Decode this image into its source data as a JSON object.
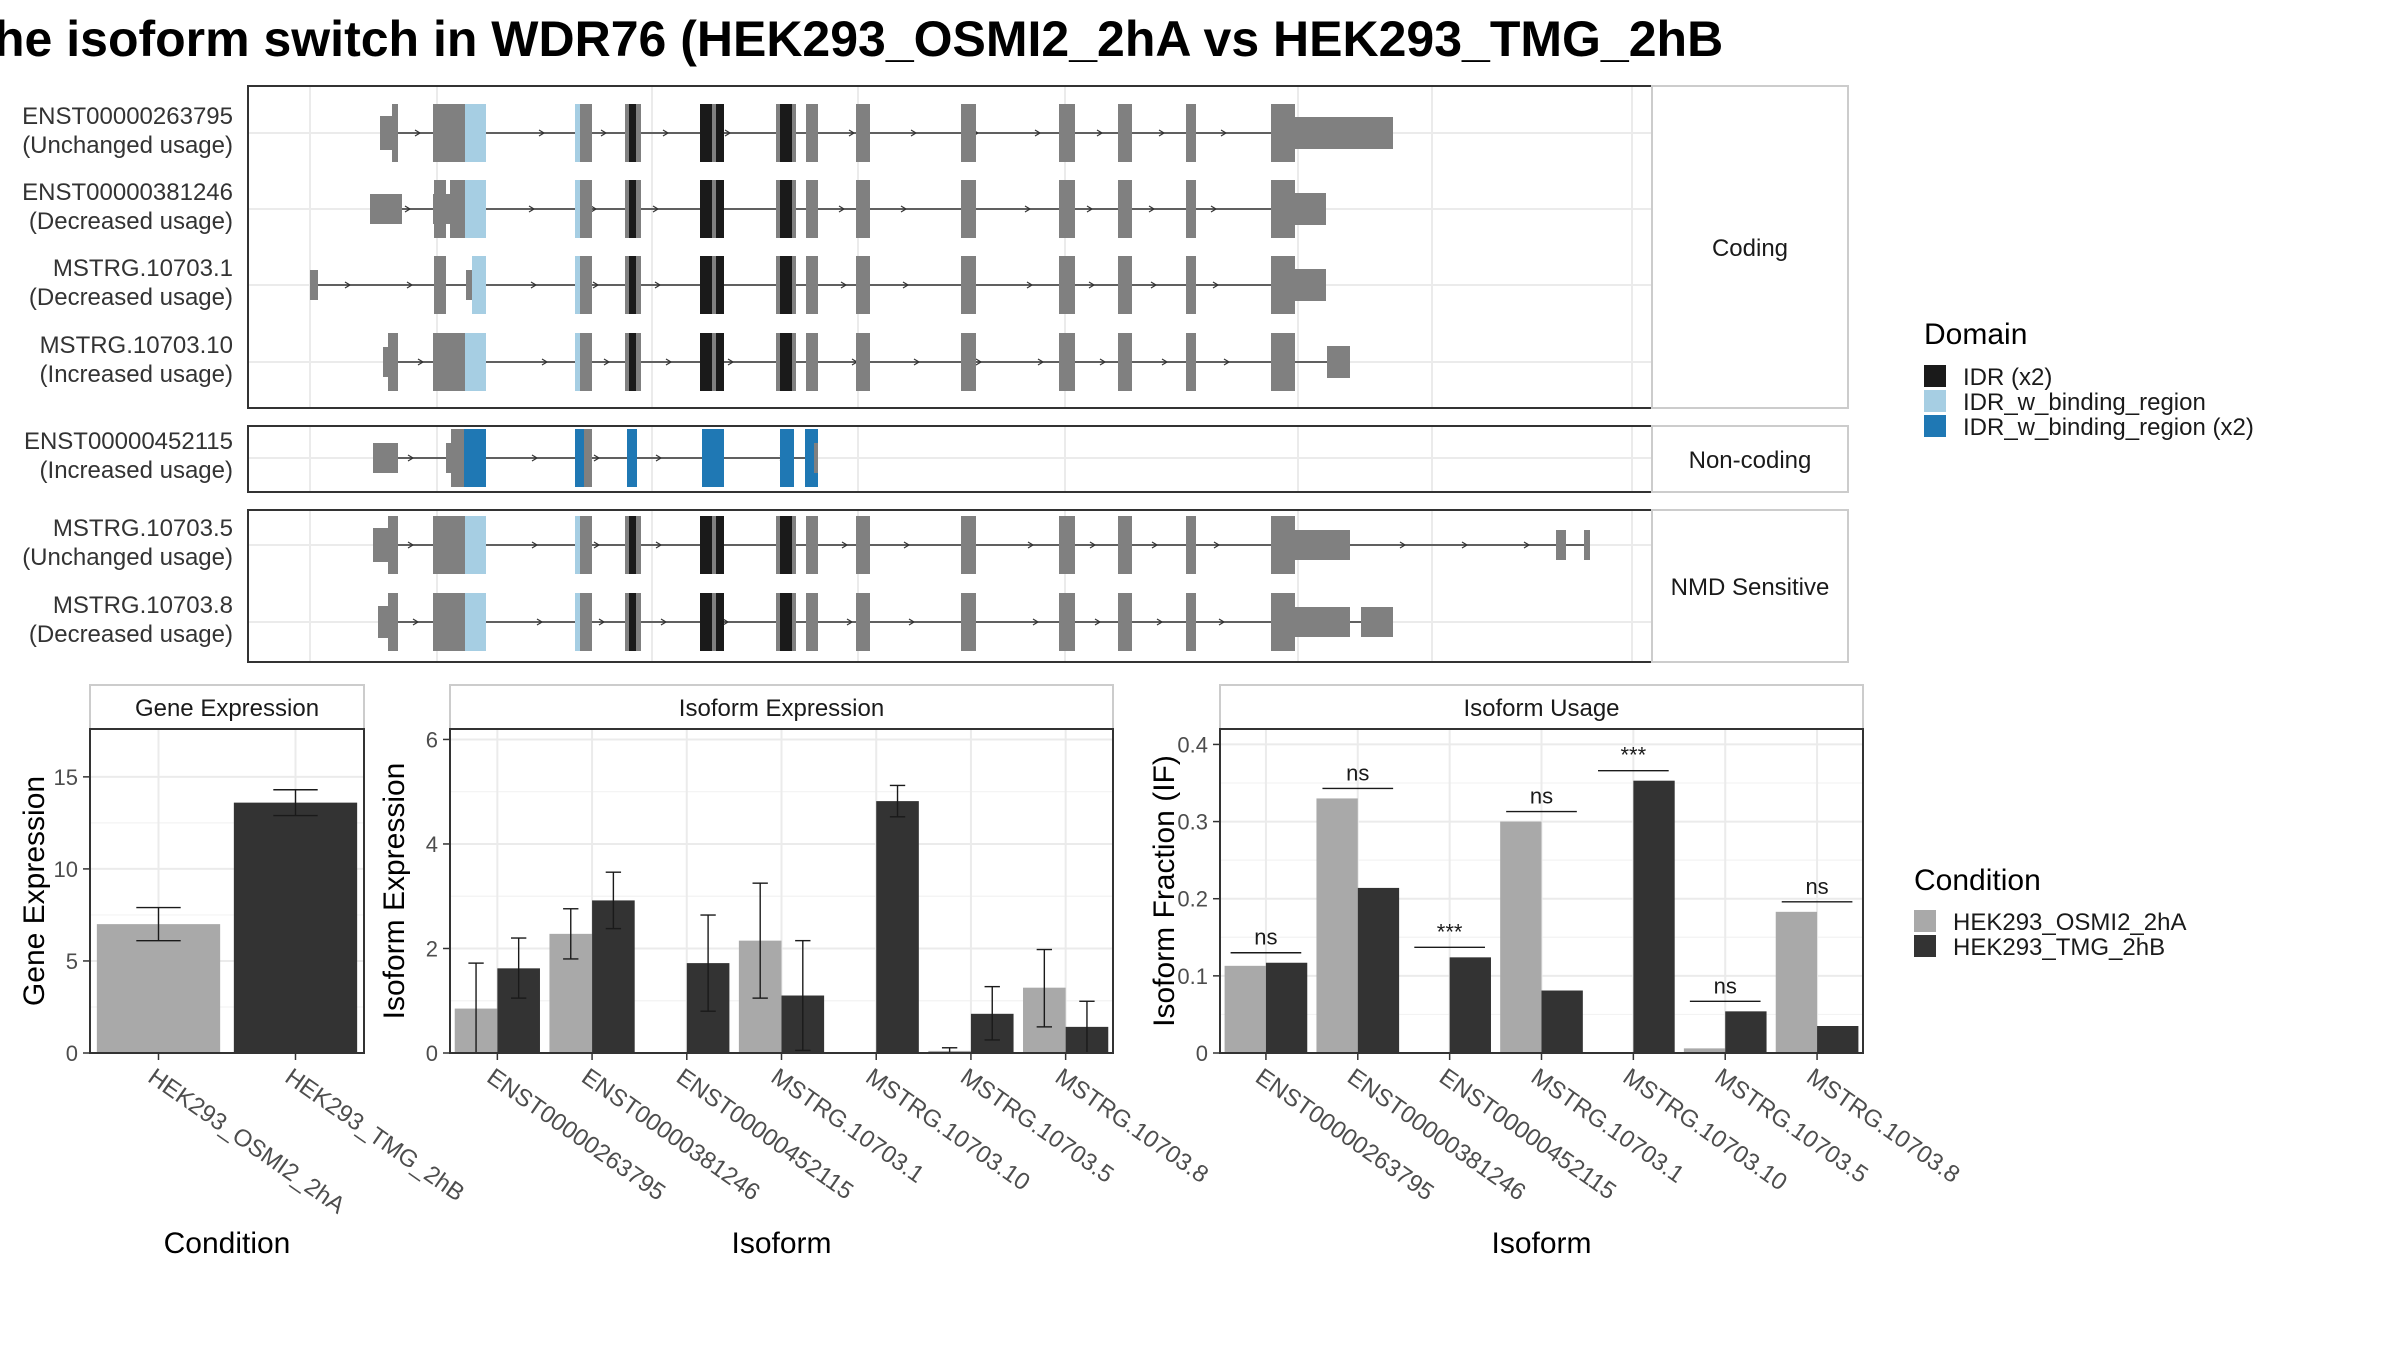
{
  "title": "he isoform switch in WDR76 (HEK293_OSMI2_2hA vs HEK293_TMG_2hB",
  "colors": {
    "gene_exon": "#808080",
    "idr": "#1a1a1a",
    "idr_binding": "#a6cee3",
    "idr_binding_x2": "#1f78b4",
    "cond_a": "#a9a9a9",
    "cond_b": "#333333"
  },
  "structure": {
    "panels": [
      {
        "label": "Coding",
        "transcripts": [
          {
            "id": "ENST00000263795",
            "usage": "(Unchanged usage)"
          },
          {
            "id": "ENST00000381246",
            "usage": "(Decreased usage)"
          },
          {
            "id": "MSTRG.10703.1",
            "usage": "(Decreased usage)"
          },
          {
            "id": "MSTRG.10703.10",
            "usage": "(Increased usage)"
          }
        ]
      },
      {
        "label": "Non-coding",
        "transcripts": [
          {
            "id": "ENST00000452115",
            "usage": "(Increased usage)"
          }
        ]
      },
      {
        "label": "NMD Sensitive",
        "transcripts": [
          {
            "id": "MSTRG.10703.5",
            "usage": "(Unchanged usage)"
          },
          {
            "id": "MSTRG.10703.8",
            "usage": "(Decreased usage)"
          }
        ]
      }
    ]
  },
  "legends": {
    "domain": {
      "title": "Domain",
      "items": [
        {
          "label": "IDR (x2)",
          "color": "#1a1a1a"
        },
        {
          "label": "IDR_w_binding_region",
          "color": "#a6cee3"
        },
        {
          "label": "IDR_w_binding_region (x2)",
          "color": "#1f78b4"
        }
      ]
    },
    "condition": {
      "title": "Condition",
      "items": [
        {
          "label": "HEK293_OSMI2_2hA",
          "color": "#a9a9a9"
        },
        {
          "label": "HEK293_TMG_2hB",
          "color": "#333333"
        }
      ]
    }
  },
  "chart_data": [
    {
      "type": "bar",
      "title": "Gene Expression",
      "xlabel": "Condition",
      "ylabel": "Gene Expression",
      "categories": [
        "HEK293_OSMI2_2hA",
        "HEK293_TMG_2hB"
      ],
      "values": [
        7.0,
        13.6
      ],
      "errors": [
        [
          6.1,
          7.9
        ],
        [
          12.9,
          14.3
        ]
      ],
      "ylim": [
        0,
        17.6
      ],
      "yticks": [
        0,
        5,
        10,
        15
      ]
    },
    {
      "type": "bar",
      "title": "Isoform Expression",
      "xlabel": "Isoform",
      "ylabel": "Isoform Expression",
      "categories": [
        "ENST00000263795",
        "ENST00000381246",
        "ENST00000452115",
        "MSTRG.10703.1",
        "MSTRG.10703.10",
        "MSTRG.10703.5",
        "MSTRG.10703.8"
      ],
      "series": [
        {
          "name": "HEK293_OSMI2_2hA",
          "values": [
            0.85,
            2.28,
            0.0,
            2.15,
            0.0,
            0.04,
            1.25
          ],
          "errors": [
            [
              0.0,
              1.72
            ],
            [
              1.8,
              2.76
            ],
            [
              0.0,
              0.0
            ],
            [
              1.05,
              3.25
            ],
            [
              0.0,
              0.0
            ],
            [
              0.0,
              0.1
            ],
            [
              0.5,
              1.98
            ]
          ]
        },
        {
          "name": "HEK293_TMG_2hB",
          "values": [
            1.62,
            2.92,
            1.72,
            1.1,
            4.82,
            0.75,
            0.5
          ],
          "errors": [
            [
              1.05,
              2.2
            ],
            [
              2.38,
              3.46
            ],
            [
              0.8,
              2.64
            ],
            [
              0.05,
              2.15
            ],
            [
              4.52,
              5.12
            ],
            [
              0.25,
              1.27
            ],
            [
              0.0,
              0.99
            ]
          ]
        }
      ],
      "ylim": [
        0,
        6.2
      ],
      "yticks": [
        0,
        2,
        4,
        6
      ]
    },
    {
      "type": "bar",
      "title": "Isoform Usage",
      "xlabel": "Isoform",
      "ylabel": "Isoform Fraction (IF)",
      "categories": [
        "ENST00000263795",
        "ENST00000381246",
        "ENST00000452115",
        "MSTRG.10703.1",
        "MSTRG.10703.10",
        "MSTRG.10703.5",
        "MSTRG.10703.8"
      ],
      "series": [
        {
          "name": "HEK293_OSMI2_2hA",
          "values": [
            0.113,
            0.33,
            0.0,
            0.3,
            0.0,
            0.006,
            0.183
          ]
        },
        {
          "name": "HEK293_TMG_2hB",
          "values": [
            0.117,
            0.214,
            0.124,
            0.081,
            0.353,
            0.054,
            0.035
          ]
        }
      ],
      "significance": [
        "ns",
        "ns",
        "***",
        "ns",
        "***",
        "ns",
        "ns"
      ],
      "ylim": [
        0,
        0.42
      ],
      "yticks": [
        0.0,
        0.1,
        0.2,
        0.3,
        0.4
      ]
    }
  ]
}
